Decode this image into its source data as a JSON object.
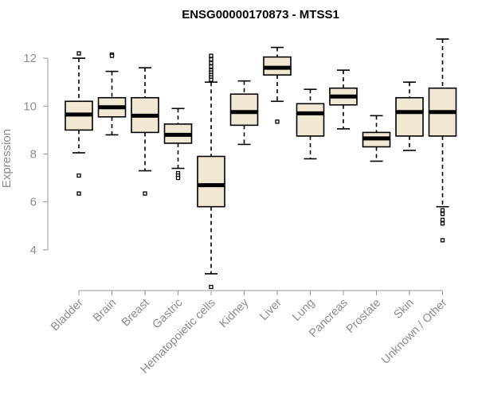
{
  "chart_data": {
    "type": "box",
    "title": "ENSG00000170873 - MTSS1",
    "xlabel": "",
    "ylabel": "Expression",
    "ylim": [
      2.3,
      13.1
    ],
    "yticks": [
      4,
      6,
      8,
      10,
      12
    ],
    "yticks_labels": [
      "4",
      "6",
      "8",
      "10",
      "12"
    ],
    "grid": false,
    "categories": [
      "Bladder",
      "Brain",
      "Breast",
      "Gastric",
      "Hematopoietic cells",
      "Kidney",
      "Liver",
      "Lung",
      "Pancreas",
      "Prostate",
      "Skin",
      "Unknown / Other"
    ],
    "boxes": [
      {
        "name": "Bladder",
        "min": 8.05,
        "q1": 9.0,
        "median": 9.65,
        "q3": 10.2,
        "max": 12.0,
        "outliers": [
          12.2,
          7.1,
          6.35
        ]
      },
      {
        "name": "Brain",
        "min": 8.8,
        "q1": 9.55,
        "median": 9.95,
        "q3": 10.35,
        "max": 11.45,
        "outliers": [
          12.15,
          12.1
        ]
      },
      {
        "name": "Breast",
        "min": 7.3,
        "q1": 8.9,
        "median": 9.6,
        "q3": 10.35,
        "max": 11.6,
        "outliers": [
          6.35
        ]
      },
      {
        "name": "Gastric",
        "min": 7.4,
        "q1": 8.45,
        "median": 8.8,
        "q3": 9.25,
        "max": 9.9,
        "outliers": [
          7.2,
          7.1,
          7.0
        ]
      },
      {
        "name": "Hematopoietic cells",
        "min": 3.0,
        "q1": 5.8,
        "median": 6.7,
        "q3": 7.9,
        "max": 11.0,
        "outliers": [
          12.1,
          11.95,
          11.8,
          11.65,
          11.5,
          11.4,
          11.3,
          11.2,
          11.1,
          2.45
        ]
      },
      {
        "name": "Kidney",
        "min": 8.4,
        "q1": 9.2,
        "median": 9.75,
        "q3": 10.5,
        "max": 11.05,
        "outliers": []
      },
      {
        "name": "Liver",
        "min": 10.2,
        "q1": 11.3,
        "median": 11.6,
        "q3": 12.05,
        "max": 12.45,
        "outliers": [
          9.35
        ]
      },
      {
        "name": "Lung",
        "min": 7.8,
        "q1": 8.75,
        "median": 9.7,
        "q3": 10.1,
        "max": 10.7,
        "outliers": []
      },
      {
        "name": "Pancreas",
        "min": 9.05,
        "q1": 10.05,
        "median": 10.4,
        "q3": 10.75,
        "max": 11.5,
        "outliers": []
      },
      {
        "name": "Prostate",
        "min": 7.7,
        "q1": 8.3,
        "median": 8.65,
        "q3": 8.9,
        "max": 9.6,
        "outliers": []
      },
      {
        "name": "Skin",
        "min": 8.15,
        "q1": 8.75,
        "median": 9.75,
        "q3": 10.35,
        "max": 11.0,
        "outliers": []
      },
      {
        "name": "Unknown / Other",
        "min": 5.8,
        "q1": 8.75,
        "median": 9.75,
        "q3": 10.75,
        "max": 12.8,
        "outliers": [
          5.65,
          5.5,
          5.25,
          5.1,
          4.4
        ]
      }
    ]
  }
}
